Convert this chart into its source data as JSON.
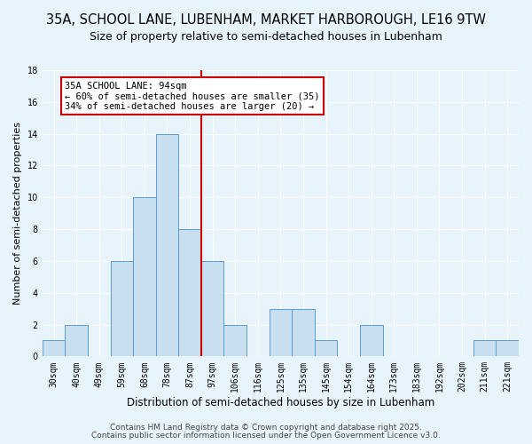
{
  "title": "35A, SCHOOL LANE, LUBENHAM, MARKET HARBOROUGH, LE16 9TW",
  "subtitle": "Size of property relative to semi-detached houses in Lubenham",
  "xlabel": "Distribution of semi-detached houses by size in Lubenham",
  "ylabel": "Number of semi-detached properties",
  "bin_labels": [
    "30sqm",
    "40sqm",
    "49sqm",
    "59sqm",
    "68sqm",
    "78sqm",
    "87sqm",
    "97sqm",
    "106sqm",
    "116sqm",
    "125sqm",
    "135sqm",
    "145sqm",
    "154sqm",
    "164sqm",
    "173sqm",
    "183sqm",
    "192sqm",
    "202sqm",
    "211sqm",
    "221sqm"
  ],
  "bin_counts": [
    1,
    2,
    0,
    6,
    10,
    14,
    8,
    6,
    2,
    0,
    3,
    3,
    1,
    0,
    2,
    0,
    0,
    0,
    0,
    1,
    1
  ],
  "bar_color": "#c8dff0",
  "bar_edge_color": "#5b9bd5",
  "vline_color": "#cc0000",
  "vline_x_index": 7,
  "annotation_title": "35A SCHOOL LANE: 94sqm",
  "annotation_line1": "← 60% of semi-detached houses are smaller (35)",
  "annotation_line2": "34% of semi-detached houses are larger (20) →",
  "annotation_box_color": "#ffffff",
  "annotation_box_edge_color": "#cc0000",
  "ylim": [
    0,
    18
  ],
  "yticks": [
    0,
    2,
    4,
    6,
    8,
    10,
    12,
    14,
    16,
    18
  ],
  "footer1": "Contains HM Land Registry data © Crown copyright and database right 2025.",
  "footer2": "Contains public sector information licensed under the Open Government Licence v3.0.",
  "background_color": "#e8f4fc",
  "plot_background_color": "#e8f4fc",
  "title_fontsize": 10.5,
  "subtitle_fontsize": 9,
  "xlabel_fontsize": 8.5,
  "ylabel_fontsize": 8,
  "tick_fontsize": 7,
  "annotation_fontsize": 7.5,
  "footer_fontsize": 6.5,
  "grid_color": "#ffffff"
}
